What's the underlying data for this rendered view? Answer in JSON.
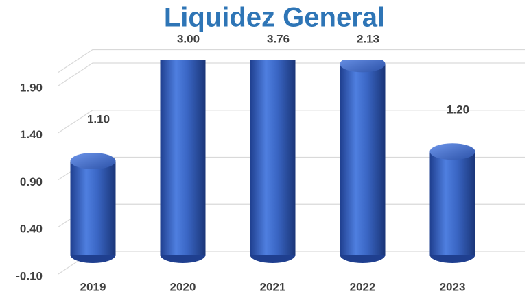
{
  "chart_data": {
    "type": "bar",
    "title": "Liquidez General",
    "categories": [
      "2019",
      "2020",
      "2021",
      "2022",
      "2023"
    ],
    "values": [
      1.1,
      3.0,
      3.76,
      2.13,
      1.2
    ],
    "value_labels": [
      "1.10",
      "3.00",
      "3.76",
      "2.13",
      "1.20"
    ],
    "color": "#3a66c4",
    "ylim": [
      -0.1,
      2.1
    ],
    "yticks": [
      {
        "value": -0.1,
        "label": "-0.10"
      },
      {
        "value": 0.4,
        "label": "0.40"
      },
      {
        "value": 0.9,
        "label": "0.90"
      },
      {
        "value": 1.4,
        "label": "1.40"
      },
      {
        "value": 1.9,
        "label": "1.90"
      }
    ],
    "grid": true
  }
}
